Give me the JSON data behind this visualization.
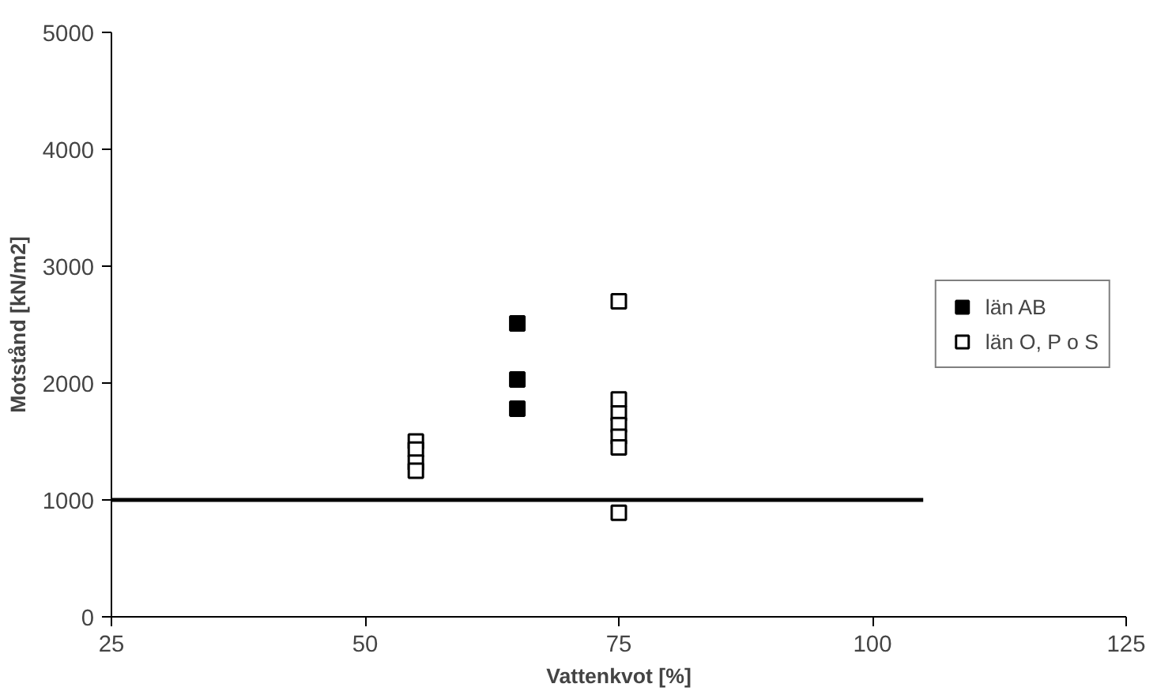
{
  "chart_data": {
    "type": "scatter",
    "xlabel": "Vattenkvot [%]",
    "ylabel": "Motstånd [kN/m2]",
    "xlim": [
      25,
      125
    ],
    "xticks": [
      25,
      50,
      75,
      100,
      125
    ],
    "ylim": [
      0,
      5000
    ],
    "yticks": [
      0,
      1000,
      2000,
      3000,
      4000,
      5000
    ],
    "grid": false,
    "legend": "right",
    "series": [
      {
        "name": "län AB",
        "color": "#000000",
        "marker": "square",
        "x": [
          65,
          65,
          65
        ],
        "values": [
          2510,
          2030,
          1780
        ]
      },
      {
        "name": "län O, P o S",
        "color": "#ffffff",
        "marker": "square",
        "x": [
          55,
          55,
          55,
          55,
          75,
          75,
          75,
          75,
          75,
          75,
          75
        ],
        "values": [
          1500,
          1430,
          1320,
          1250,
          2700,
          1860,
          1740,
          1640,
          1540,
          1450,
          890
        ]
      },
      {
        "type": "line",
        "color": "#000000",
        "x": [
          25,
          105
        ],
        "values": [
          1000,
          1000
        ]
      }
    ]
  }
}
